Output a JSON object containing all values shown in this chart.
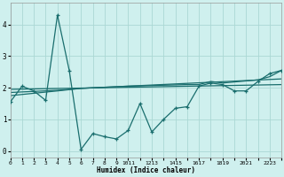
{
  "background_color": "#cff0ee",
  "grid_color": "#aad8d4",
  "line_color": "#1a6e6e",
  "xlabel": "Humidex (Indice chaleur)",
  "xlim": [
    0,
    23
  ],
  "ylim": [
    -0.2,
    4.7
  ],
  "yticks": [
    0,
    1,
    2,
    3,
    4
  ],
  "xtick_labels": [
    "0",
    "1",
    "2",
    "3",
    "4",
    "5",
    "6",
    "7",
    "8",
    "9",
    "1011",
    "1213",
    "1415",
    "1617",
    "1819",
    "2021",
    "2223"
  ],
  "series_zigzag": {
    "x": [
      0,
      1,
      2,
      3,
      4,
      5,
      6,
      7,
      8,
      9,
      10,
      11,
      12,
      13,
      14,
      15,
      16,
      17,
      18,
      19,
      20,
      21,
      22,
      23
    ],
    "y": [
      1.55,
      2.05,
      1.9,
      1.6,
      4.3,
      2.55,
      0.05,
      0.55,
      0.45,
      0.38,
      0.65,
      1.5,
      0.6,
      1.0,
      1.35,
      1.4,
      2.05,
      2.15,
      2.1,
      1.9,
      1.9,
      2.2,
      2.45,
      2.55
    ]
  },
  "series_flat1": {
    "x": [
      0,
      23
    ],
    "y": [
      1.95,
      2.1
    ]
  },
  "series_flat2": {
    "x": [
      0,
      4,
      6,
      23
    ],
    "y": [
      1.85,
      1.92,
      1.98,
      2.28
    ]
  },
  "series_flat3": {
    "x": [
      0,
      4,
      6,
      10,
      15,
      16,
      17,
      18,
      21,
      22,
      23
    ],
    "y": [
      1.75,
      1.9,
      1.98,
      2.05,
      2.1,
      2.1,
      2.2,
      2.15,
      2.25,
      2.35,
      2.55
    ]
  }
}
